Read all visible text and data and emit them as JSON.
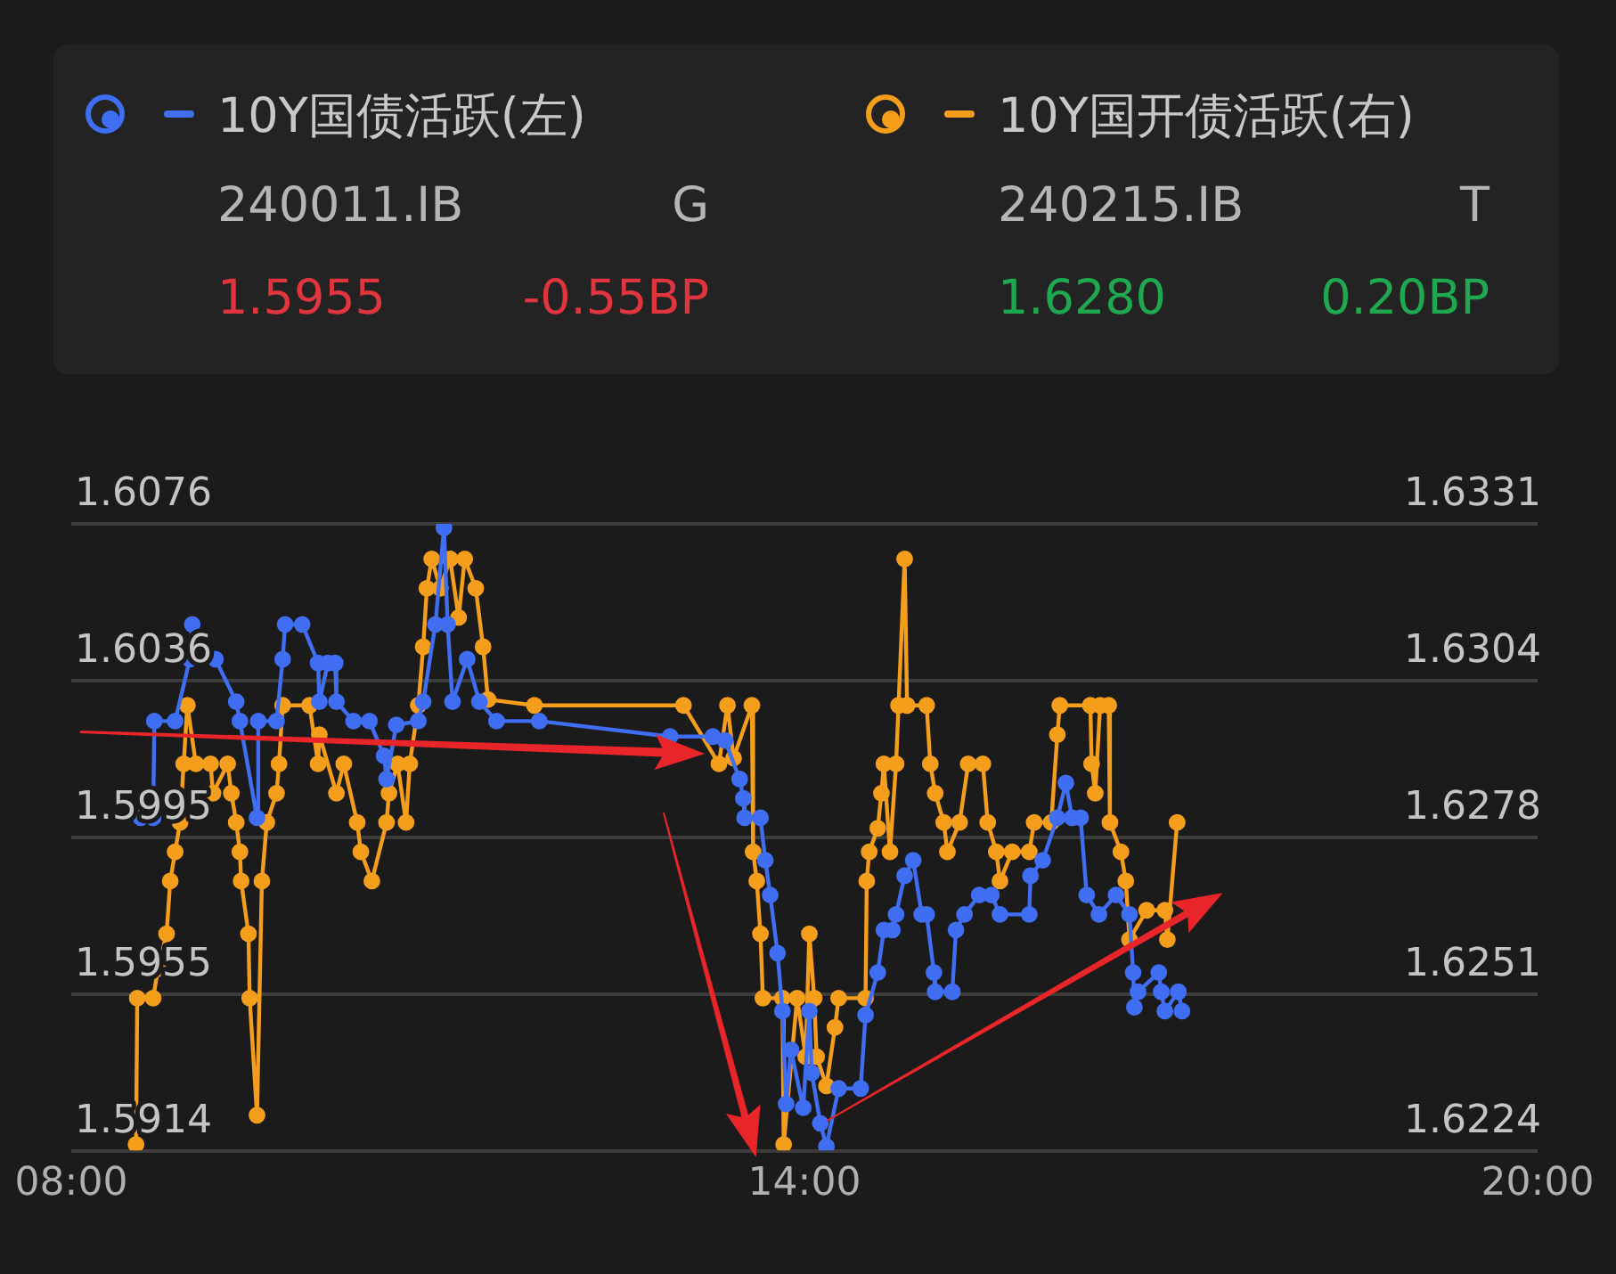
{
  "chart_data": {
    "type": "line",
    "xlim": [
      8,
      20
    ],
    "xticks": [
      {
        "value": 8,
        "label": "08:00"
      },
      {
        "value": 14,
        "label": "14:00"
      },
      {
        "value": 20,
        "label": "20:00"
      }
    ],
    "ylim": [
      1.5914,
      1.6076
    ],
    "yticks": [
      1.5914,
      {
        "value": 1.59545,
        "label": "1.5955"
      },
      1.5995,
      {
        "value": 1.60355,
        "label": "1.6036"
      },
      1.6076
    ],
    "y2lim": [
      1.6224,
      1.6331
    ],
    "y2ticks": [
      1.6224,
      {
        "value": 1.625075,
        "label": "1.6251"
      },
      {
        "value": 1.62775,
        "label": "1.6278"
      },
      {
        "value": 1.630425,
        "label": "1.6304"
      },
      1.6331
    ],
    "grid": "y",
    "legend": "top",
    "marker": "circle",
    "line_style": "solid",
    "annotations": [
      "240011.IB",
      "G",
      "1.5955",
      "-0.55BP",
      "240215.IB",
      "T",
      "1.6280",
      "0.20BP"
    ],
    "series": [
      {
        "name": "10Y国债活跃(左)",
        "color": "#3f6ef2",
        "x": [
          8.57,
          8.67,
          8.68,
          8.85,
          8.97,
          8.99,
          9.18,
          9.35,
          9.38,
          9.52,
          9.53,
          9.68,
          9.73,
          9.75,
          9.89,
          10.02,
          10.03,
          10.1,
          10.16,
          10.17,
          10.31,
          10.44,
          10.56,
          10.58,
          10.66,
          10.84,
          10.88,
          10.98,
          11.05,
          11.08,
          11.12,
          11.24,
          11.34,
          11.48,
          11.83,
          12.9,
          13.25,
          13.35,
          13.47,
          13.5,
          13.51,
          13.64,
          13.68,
          13.72,
          13.78,
          13.82,
          13.85,
          13.89,
          13.99,
          14.04,
          14.06,
          14.13,
          14.18,
          14.28,
          14.46,
          14.5,
          14.6,
          14.65,
          14.72,
          14.75,
          14.82,
          14.89,
          14.96,
          15.0,
          15.06,
          15.07,
          15.21,
          15.24,
          15.31,
          15.43,
          15.53,
          15.6,
          15.84,
          15.85,
          15.95,
          16.07,
          16.14,
          16.19,
          16.26,
          16.31,
          16.41,
          16.55,
          16.66,
          16.69,
          16.7,
          16.73,
          16.9,
          16.92,
          16.95,
          17.06,
          17.09
        ],
        "values": [
          1.6,
          1.6,
          1.6025,
          1.6025,
          1.6041,
          1.605,
          1.6041,
          1.603,
          1.6025,
          1.6,
          1.6025,
          1.6025,
          1.6041,
          1.605,
          1.605,
          1.604,
          1.603,
          1.604,
          1.604,
          1.603,
          1.6025,
          1.6025,
          1.6016,
          1.601,
          1.6024,
          1.6025,
          1.603,
          1.605,
          1.6075,
          1.605,
          1.603,
          1.6041,
          1.603,
          1.6025,
          1.6025,
          1.6021,
          1.6021,
          1.602,
          1.601,
          1.6005,
          1.6,
          1.6,
          1.5989,
          1.598,
          1.5965,
          1.595,
          1.5926,
          1.594,
          1.5925,
          1.595,
          1.5934,
          1.5921,
          1.5915,
          1.593,
          1.593,
          1.5949,
          1.596,
          1.5971,
          1.5971,
          1.5975,
          1.5985,
          1.5989,
          1.5975,
          1.5975,
          1.596,
          1.5955,
          1.5955,
          1.5971,
          1.5975,
          1.598,
          1.598,
          1.5975,
          1.5975,
          1.5985,
          1.5989,
          1.6,
          1.6009,
          1.6,
          1.6,
          1.598,
          1.5975,
          1.598,
          1.5975,
          1.596,
          1.5951,
          1.5955,
          1.596,
          1.5955,
          1.595,
          1.5955,
          1.595
        ]
      },
      {
        "name": "10Y国开债活跃(右)",
        "color": "#f59e1b",
        "axis": "y2",
        "x": [
          8.53,
          8.54,
          8.67,
          8.71,
          8.78,
          8.81,
          8.85,
          8.89,
          8.92,
          8.95,
          9.02,
          9.14,
          9.16,
          9.28,
          9.31,
          9.35,
          9.38,
          9.39,
          9.45,
          9.46,
          9.52,
          9.56,
          9.6,
          9.68,
          9.7,
          9.73,
          9.95,
          10.02,
          10.03,
          10.17,
          10.23,
          10.34,
          10.37,
          10.46,
          10.58,
          10.6,
          10.67,
          10.74,
          10.77,
          10.84,
          10.88,
          10.91,
          10.95,
          11.02,
          11.1,
          11.17,
          11.22,
          11.31,
          11.37,
          11.41,
          11.79,
          13.01,
          13.3,
          13.37,
          13.42,
          13.57,
          13.58,
          13.61,
          13.64,
          13.66,
          13.82,
          13.83,
          13.94,
          14.01,
          14.04,
          14.08,
          14.1,
          14.18,
          14.25,
          14.28,
          14.5,
          14.51,
          14.53,
          14.6,
          14.63,
          14.65,
          14.7,
          14.75,
          14.77,
          14.82,
          14.84,
          15.0,
          15.03,
          15.07,
          15.14,
          15.17,
          15.27,
          15.34,
          15.46,
          15.5,
          15.57,
          15.6,
          15.7,
          15.84,
          15.88,
          16.02,
          16.07,
          16.09,
          16.34,
          16.35,
          16.38,
          16.42,
          16.49,
          16.5,
          16.59,
          16.63,
          16.66,
          16.8,
          16.95,
          16.97,
          17.05
        ],
        "values": [
          1.6225,
          1.625,
          1.625,
          1.6255,
          1.6261,
          1.627,
          1.6275,
          1.628,
          1.629,
          1.63,
          1.629,
          1.629,
          1.6285,
          1.629,
          1.6285,
          1.628,
          1.6275,
          1.627,
          1.6261,
          1.625,
          1.623,
          1.627,
          1.628,
          1.6285,
          1.629,
          1.63,
          1.63,
          1.629,
          1.6295,
          1.6285,
          1.629,
          1.628,
          1.6275,
          1.627,
          1.628,
          1.6285,
          1.629,
          1.628,
          1.629,
          1.63,
          1.631,
          1.632,
          1.6325,
          1.632,
          1.6325,
          1.6315,
          1.6325,
          1.632,
          1.631,
          1.6301,
          1.63,
          1.63,
          1.629,
          1.63,
          1.6291,
          1.63,
          1.6275,
          1.627,
          1.6261,
          1.625,
          1.625,
          1.6225,
          1.625,
          1.624,
          1.6261,
          1.625,
          1.624,
          1.6235,
          1.6245,
          1.625,
          1.625,
          1.627,
          1.6275,
          1.6279,
          1.6285,
          1.629,
          1.6275,
          1.629,
          1.63,
          1.6325,
          1.63,
          1.63,
          1.629,
          1.6285,
          1.628,
          1.6275,
          1.628,
          1.629,
          1.629,
          1.628,
          1.6275,
          1.627,
          1.6275,
          1.6275,
          1.628,
          1.628,
          1.6295,
          1.63,
          1.63,
          1.629,
          1.6285,
          1.63,
          1.63,
          1.628,
          1.6275,
          1.627,
          1.626,
          1.6265,
          1.6265,
          1.626,
          1.628
        ]
      }
    ]
  }
}
